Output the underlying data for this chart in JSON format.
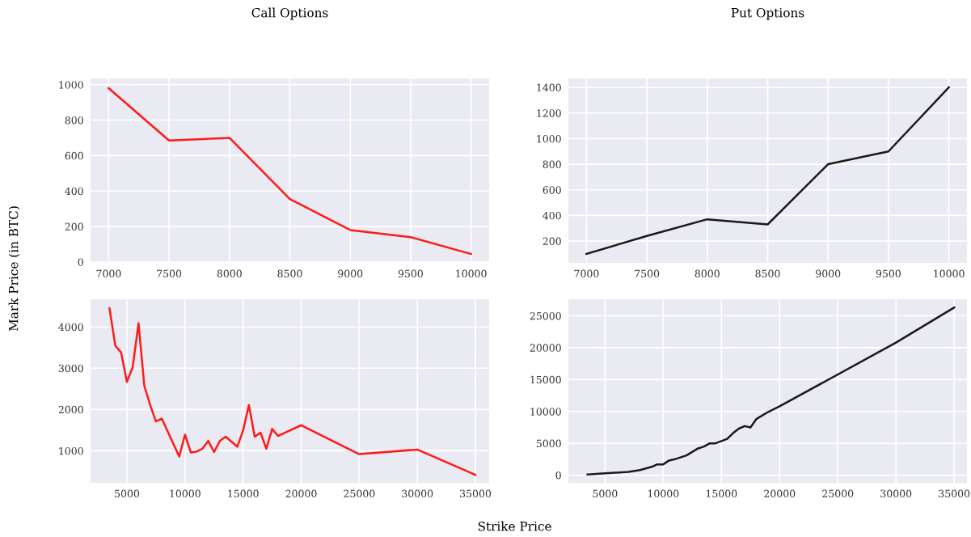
{
  "chart_data": [
    {
      "type": "line",
      "title": "Call Options",
      "ylabel": "Mark Price (in BTC)",
      "x": [
        7000,
        7500,
        8000,
        8500,
        9000,
        9500,
        10000
      ],
      "series": [
        {
          "color": "#ff1a1a",
          "values": [
            980,
            685,
            700,
            355,
            180,
            140,
            45
          ]
        }
      ],
      "xlim": [
        6850,
        10150
      ],
      "ylim": [
        -5,
        1035
      ],
      "xticks": [
        7000,
        7500,
        8000,
        8500,
        9000,
        9500,
        10000
      ],
      "yticks": [
        0,
        200,
        400,
        600,
        800,
        1000
      ],
      "grid": true
    },
    {
      "type": "line",
      "title": "Put Options",
      "x": [
        7000,
        7500,
        8000,
        8500,
        9000,
        9500,
        10000
      ],
      "series": [
        {
          "color": "#1a1a1a",
          "values": [
            100,
            240,
            370,
            330,
            800,
            900,
            1400
          ]
        }
      ],
      "xlim": [
        6850,
        10150
      ],
      "ylim": [
        30,
        1470
      ],
      "xticks": [
        7000,
        7500,
        8000,
        8500,
        9000,
        9500,
        10000
      ],
      "yticks": [
        200,
        400,
        600,
        800,
        1000,
        1200,
        1400
      ],
      "grid": true
    },
    {
      "type": "line",
      "xlabel": "Strike Price",
      "x": [
        3500,
        4000,
        4500,
        5000,
        5500,
        6000,
        6500,
        7000,
        7500,
        8000,
        9500,
        10000,
        10500,
        11000,
        11500,
        12000,
        12500,
        13000,
        13500,
        14500,
        15000,
        15500,
        16000,
        16500,
        17000,
        17500,
        18000,
        20000,
        25000,
        30000,
        35000
      ],
      "series": [
        {
          "color": "#ff1a1a",
          "values": [
            4450,
            3550,
            3380,
            2670,
            3030,
            4090,
            2570,
            2110,
            1710,
            1780,
            860,
            1390,
            960,
            980,
            1050,
            1240,
            970,
            1240,
            1340,
            1100,
            1490,
            2110,
            1340,
            1440,
            1050,
            1530,
            1360,
            1620,
            920,
            1030,
            420
          ]
        }
      ],
      "xlim": [
        1870,
        36180
      ],
      "ylim": [
        225,
        4670
      ],
      "xticks": [
        5000,
        10000,
        15000,
        20000,
        25000,
        30000,
        35000
      ],
      "yticks": [
        1000,
        2000,
        3000,
        4000
      ],
      "grid": true
    },
    {
      "type": "line",
      "x": [
        3500,
        5000,
        7000,
        8000,
        9000,
        9500,
        10000,
        10500,
        11000,
        12000,
        13000,
        13500,
        14000,
        14500,
        15500,
        16000,
        16500,
        17000,
        17500,
        18000,
        19000,
        20000,
        30000,
        35000
      ],
      "series": [
        {
          "color": "#1a1a1a",
          "values": [
            100,
            300,
            500,
            800,
            1300,
            1700,
            1700,
            2300,
            2500,
            3100,
            4200,
            4500,
            5000,
            5000,
            5700,
            6600,
            7300,
            7700,
            7500,
            8800,
            9900,
            10800,
            20800,
            26300
          ]
        }
      ],
      "xlim": [
        1850,
        36100
      ],
      "ylim": [
        -1200,
        27600
      ],
      "xticks": [
        5000,
        10000,
        15000,
        20000,
        25000,
        30000,
        35000
      ],
      "yticks": [
        0,
        5000,
        10000,
        15000,
        20000,
        25000
      ],
      "grid": true
    }
  ]
}
